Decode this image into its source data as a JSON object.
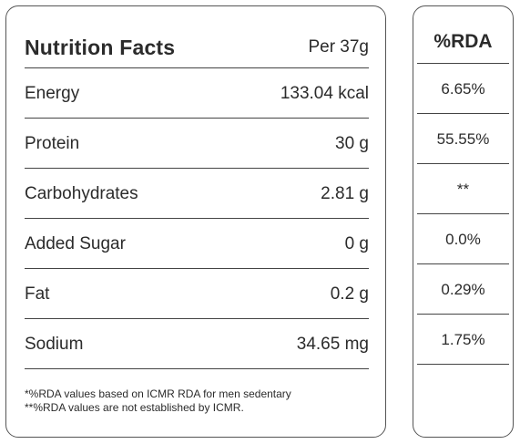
{
  "facts": {
    "title": "Nutrition Facts",
    "per": "Per 37g",
    "rows": [
      {
        "label": "Energy",
        "value": "133.04 kcal"
      },
      {
        "label": "Protein",
        "value": "30 g"
      },
      {
        "label": "Carbohydrates",
        "value": "2.81 g"
      },
      {
        "label": "Added Sugar",
        "value": "0 g"
      },
      {
        "label": "Fat",
        "value": "0.2 g"
      },
      {
        "label": "Sodium",
        "value": "34.65 mg"
      }
    ],
    "footnote1": "*%RDA values based on ICMR RDA for men sedentary",
    "footnote2": "**%RDA values are not established by ICMR."
  },
  "rda": {
    "title": "%RDA",
    "values": [
      "6.65%",
      "55.55%",
      "**",
      "0.0%",
      "0.29%",
      "1.75%"
    ]
  }
}
